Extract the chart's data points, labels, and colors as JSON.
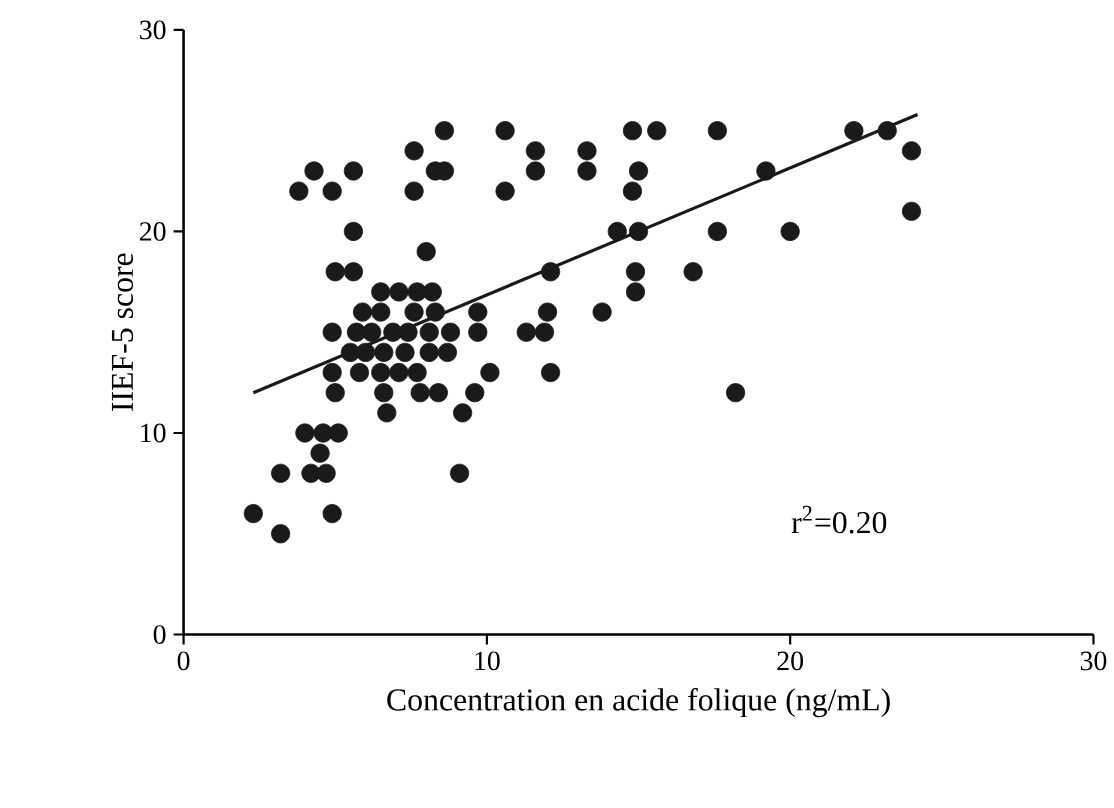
{
  "chart_data": {
    "type": "scatter",
    "xlabel": "Concentration en acide folique (ng/mL)",
    "ylabel": "IIEF-5 score",
    "xlim": [
      0,
      30
    ],
    "ylim": [
      0,
      30
    ],
    "xticks": [
      0,
      10,
      20,
      30
    ],
    "yticks": [
      0,
      10,
      20,
      30
    ],
    "grid": false,
    "annotations": [
      "r$^{2}$=0.20"
    ],
    "series": [
      {
        "marker": "circle",
        "color": "#1a1a1a",
        "x": [
          8.6,
          7.6,
          8.3,
          8.6,
          7.6,
          4.3,
          5.6,
          3.8,
          4.9,
          5.6,
          8.0,
          5.0,
          5.6,
          6.5,
          7.1,
          7.7,
          8.2,
          5.9,
          6.5,
          7.6,
          8.3,
          9.7,
          4.9,
          5.7,
          6.2,
          6.9,
          7.4,
          8.1,
          8.8,
          9.7,
          5.5,
          6.0,
          6.6,
          7.3,
          8.1,
          8.7,
          4.9,
          5.8,
          6.5,
          7.1,
          7.7,
          10.1,
          5.0,
          6.6,
          7.8,
          8.4,
          9.6,
          6.7,
          9.2,
          4.0,
          4.6,
          5.1,
          4.5,
          3.2,
          4.2,
          4.7,
          9.1,
          2.3,
          4.9,
          3.2,
          10.6,
          11.6,
          11.6,
          13.3,
          13.3,
          14.8,
          15.6,
          17.6,
          10.6,
          15.0,
          14.8,
          19.2,
          14.3,
          15.0,
          17.6,
          20.0,
          12.1,
          14.9,
          14.9,
          16.8,
          12.0,
          11.3,
          11.9,
          13.8,
          12.1,
          18.2,
          22.1,
          23.2,
          24.0,
          24.0
        ],
        "values": [
          25,
          24,
          23,
          23,
          22,
          23,
          23,
          22,
          22,
          20,
          19,
          18,
          18,
          17,
          17,
          17,
          17,
          16,
          16,
          16,
          16,
          16,
          15,
          15,
          15,
          15,
          15,
          15,
          15,
          15,
          14,
          14,
          14,
          14,
          14,
          14,
          13,
          13,
          13,
          13,
          13,
          13,
          12,
          12,
          12,
          12,
          12,
          11,
          11,
          10,
          10,
          10,
          9,
          8,
          8,
          8,
          8,
          6,
          6,
          5,
          25,
          24,
          23,
          24,
          23,
          25,
          25,
          25,
          22,
          23,
          22,
          23,
          20,
          20,
          20,
          20,
          18,
          18,
          17,
          18,
          16,
          15,
          15,
          16,
          13,
          12,
          25,
          25,
          24,
          21
        ]
      },
      {
        "type": "line",
        "marker": "none",
        "color": "#1a1a1a",
        "x": [
          2.3,
          24.2
        ],
        "values": [
          12.0,
          25.8
        ]
      }
    ]
  }
}
